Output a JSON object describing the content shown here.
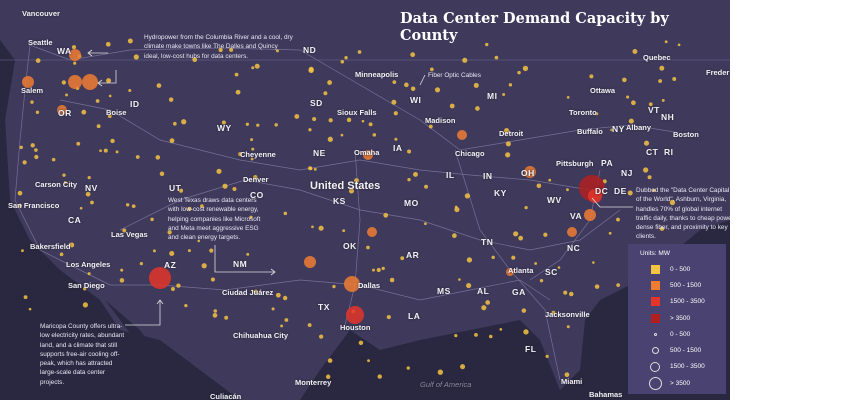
{
  "title": "Data Center Demand Capacity by County",
  "labels": {
    "cities": [
      "Vancouver",
      "Seattle",
      "Salem",
      "Boise",
      "Minneapolis",
      "Sioux Falls",
      "Madison",
      "Detroit",
      "Toronto",
      "Ottawa",
      "Quebec",
      "Freder",
      "Albany",
      "Boston",
      "Buffalo",
      "Chicago",
      "Omaha",
      "Cheyenne",
      "Pittsburgh",
      "Denver",
      "Carson City",
      "San Francisco",
      "Las Vegas",
      "Bakersfield",
      "Los Angeles",
      "San Diego",
      "Atlanta",
      "Dallas",
      "Ciudad Juárez",
      "Jacksonville",
      "Houston",
      "Chihuahua City",
      "Monterrey",
      "Miami",
      "Culiacán",
      "Bahamas"
    ],
    "states": [
      "WA",
      "OR",
      "ID",
      "ND",
      "SD",
      "WI",
      "MI",
      "WY",
      "VT",
      "NH",
      "NY",
      "CT",
      "RI",
      "IA",
      "NE",
      "PA",
      "NJ",
      "OH",
      "IN",
      "IL",
      "CO",
      "NV",
      "UT",
      "KS",
      "MO",
      "KY",
      "WV",
      "DC",
      "DE",
      "VA",
      "CA",
      "NC",
      "TN",
      "OK",
      "AR",
      "NM",
      "AZ",
      "SC",
      "GA",
      "AL",
      "MS",
      "TX",
      "LA",
      "FL"
    ],
    "country": "United States",
    "water": "Gulf of America"
  },
  "annotations": {
    "columbia": "Hydropower from the Columbia River and a cool, dry climate make towns like The Dalles and Quincy ideal, low-cost hubs for data centers.",
    "fiber": "Fiber Optic Cables",
    "west_texas": "West Texas draws data centers with low-cost renewable energy, helping companies like Microsoft and Meta meet aggressive ESG and clean energy targets.",
    "ashburn": "Dubbed the \"Data Center Capital of the World\", Ashburn, Virginia, handles 70% of global internet traffic daily, thanks to cheap power, dense fiber, and proximity to key clients.",
    "maricopa": "Maricopa County offers ultra-low electricity rates, abundant land, and a climate that still supports free-air cooling off-peak, which has attracted large-scale data center projects."
  },
  "legend": {
    "title": "Units: MW",
    "colors": [
      {
        "label": "0 - 500",
        "color": "#f5c342"
      },
      {
        "label": "500 - 1500",
        "color": "#ee7d32"
      },
      {
        "label": "1500 - 3500",
        "color": "#e3352a"
      },
      {
        "label": "> 3500",
        "color": "#b0201e"
      }
    ],
    "sizes": [
      {
        "label": "0 - 500"
      },
      {
        "label": "500 - 1500"
      },
      {
        "label": "1500 - 3500"
      },
      {
        "label": "> 3500"
      }
    ]
  }
}
